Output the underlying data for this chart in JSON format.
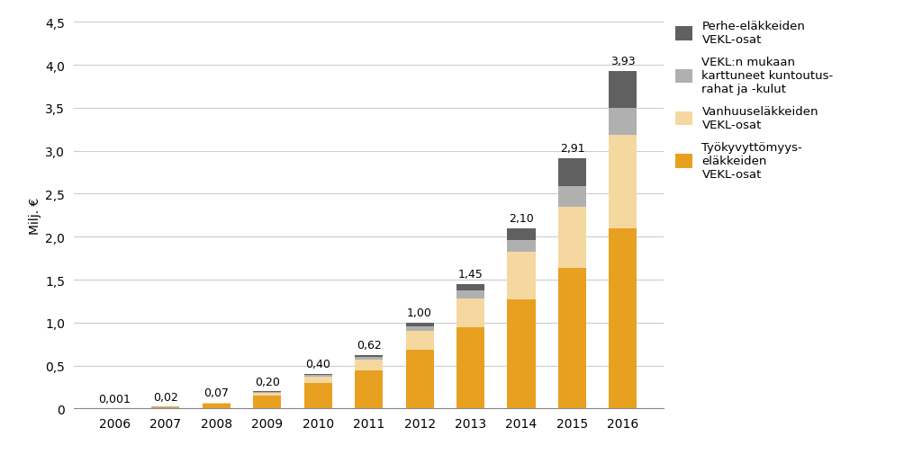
{
  "years": [
    "2006",
    "2007",
    "2008",
    "2009",
    "2010",
    "2011",
    "2012",
    "2013",
    "2014",
    "2015",
    "2016"
  ],
  "totals": [
    0.001,
    0.02,
    0.07,
    0.2,
    0.4,
    0.62,
    1.0,
    1.45,
    2.1,
    2.91,
    3.93
  ],
  "segments": {
    "tyokyvyttomyys": [
      0.001,
      0.018,
      0.055,
      0.155,
      0.295,
      0.44,
      0.68,
      0.95,
      1.27,
      1.64,
      2.1
    ],
    "vanhuuselakkeet": [
      0.0,
      0.001,
      0.01,
      0.03,
      0.075,
      0.125,
      0.22,
      0.33,
      0.55,
      0.71,
      1.09
    ],
    "kuntoutus": [
      0.0,
      0.001,
      0.004,
      0.01,
      0.022,
      0.038,
      0.06,
      0.095,
      0.14,
      0.24,
      0.31
    ],
    "perhe": [
      0.0,
      0.0,
      0.001,
      0.005,
      0.008,
      0.017,
      0.04,
      0.075,
      0.14,
      0.32,
      0.43
    ]
  },
  "colors": {
    "tyokyvyttomyys": "#E8A020",
    "vanhuuselakkeet": "#F5D8A0",
    "kuntoutus": "#B0B0B0",
    "perhe": "#606060"
  },
  "labels": {
    "perhe": "Perhe-eläkkeiden\nVEKL-osat",
    "kuntoutus": "VEKL:n mukaan\nkarttuneet kuntoutus-\nrahat ja -kulut",
    "vanhuuselakkeet": "Vanhuuseläkkeiden\nVEKL-osat",
    "tyokyvyttomyys": "Työkyvyttömyys-\neläkkeiden\nVEKL-osat"
  },
  "ylabel": "Milj. €",
  "ylim": [
    0,
    4.5
  ],
  "yticks": [
    0.0,
    0.5,
    1.0,
    1.5,
    2.0,
    2.5,
    3.0,
    3.5,
    4.0,
    4.5
  ],
  "background_color": "#ffffff",
  "annotation_labels": [
    "0,001",
    "0,02",
    "0,07",
    "0,20",
    "0,40",
    "0,62",
    "1,00",
    "1,45",
    "2,10",
    "2,91",
    "3,93"
  ]
}
